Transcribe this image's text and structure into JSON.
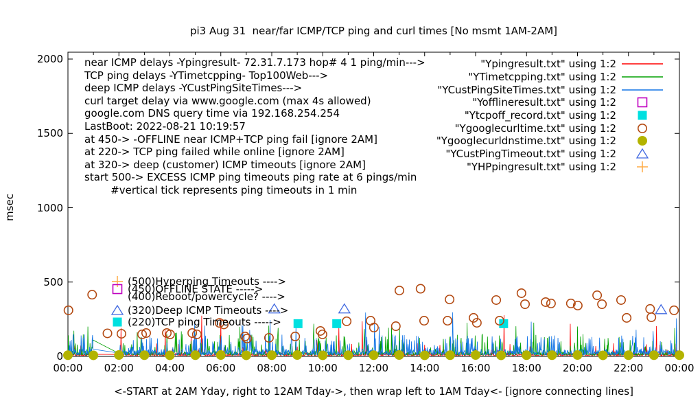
{
  "title": "pi3 Aug 31  near/far ICMP/TCP ping and curl times [No msmt 1AM-2AM]",
  "caption": "<-START at 2AM Yday, right to 12AM Tday->, then wrap left to 1AM Tday<- [ignore connecting lines]",
  "axes": {
    "ylabel": "msec",
    "y_ticks": [
      {
        "msec": 0,
        "label": "0"
      },
      {
        "msec": 500,
        "label": "500"
      },
      {
        "msec": 1000,
        "label": "1000"
      },
      {
        "msec": 1500,
        "label": "1500"
      },
      {
        "msec": 2000,
        "label": "2000"
      }
    ],
    "x_ticks": [
      {
        "h": 0,
        "label": "00:00"
      },
      {
        "h": 2,
        "label": "02:00"
      },
      {
        "h": 4,
        "label": "04:00"
      },
      {
        "h": 6,
        "label": "06:00"
      },
      {
        "h": 8,
        "label": "08:00"
      },
      {
        "h": 10,
        "label": "10:00"
      },
      {
        "h": 12,
        "label": "12:00"
      },
      {
        "h": 14,
        "label": "14:00"
      },
      {
        "h": 16,
        "label": "16:00"
      },
      {
        "h": 18,
        "label": "18:00"
      },
      {
        "h": 20,
        "label": "20:00"
      },
      {
        "h": 22,
        "label": "22:00"
      },
      {
        "h": 24,
        "label": "00:00"
      }
    ]
  },
  "colors": {
    "near": "#ff0000",
    "tcp": "#00a000",
    "deep": "#1274e6",
    "offline": "#bf00bf",
    "tcpoff": "#00e0e0",
    "curl": "#b34a12",
    "dns": "#b3b300",
    "custping": "#4169e1",
    "hp": "#ffaa44",
    "axis": "#000000"
  },
  "info": {
    "lines": [
      "near ICMP delays -Ypingresult- 72.31.7.173 hop# 4 1 ping/min--->",
      "TCP ping delays -YTimetcpping- Top100Web--->",
      "deep ICMP delays -YCustPingSiteTimes--->",
      "curl target delay via www.google.com (max 4s allowed)",
      "google.com DNS query time via 192.168.254.254",
      "LastBoot: 2022-08-21 10:19:57",
      "at 450-> -OFFLINE near ICMP+TCP ping fail [ignore 2AM]",
      "at 220-> TCP ping failed while online [ignore 2AM]",
      "at 320-> deep (customer) ICMP timeouts [ignore 2AM]",
      "start 500-> EXCESS ICMP ping timeouts ping rate at 6 pings/min",
      "        #vertical tick represents ping timeouts in 1 min"
    ]
  },
  "legend": {
    "items": [
      {
        "label": "\"Ypingresult.txt\" using 1:2",
        "sample": "line",
        "color": "near"
      },
      {
        "label": "\"YTimetcpping.txt\" using 1:2",
        "sample": "line",
        "color": "tcp"
      },
      {
        "label": "\"YCustPingSiteTimes.txt\" using 1:2",
        "sample": "line",
        "color": "deep"
      },
      {
        "label": "\"Yofflineresult.txt\" using 1:2",
        "sample": "open-square",
        "color": "offline"
      },
      {
        "label": "\"Ytcpoff_record.txt\" using 1:2",
        "sample": "filled-square",
        "color": "tcpoff"
      },
      {
        "label": "\"Ygooglecurltime.txt\" using 1:2",
        "sample": "open-circle",
        "color": "curl"
      },
      {
        "label": "\"Ygooglecurldnstime.txt\" using 1:2",
        "sample": "filled-circle",
        "color": "dns"
      },
      {
        "label": "\"YCustPingTimeout.txt\" using 1:2",
        "sample": "open-triangle",
        "color": "custping"
      },
      {
        "label": "\"YHPpingresult.txt\" using 1:2",
        "sample": "plus",
        "color": "hp"
      }
    ]
  },
  "chart_data": {
    "type": "line",
    "title": "pi3 Aug 31  near/far ICMP/TCP ping and curl times [No msmt 1AM-2AM]",
    "xlabel": "<-START at 2AM Yday, right to 12AM Tday->, then wrap left to 1AM Tday<- [ignore connecting lines]",
    "ylabel": "msec",
    "ylim": [
      0,
      2000
    ],
    "x_range_hours": [
      0,
      24
    ],
    "gap_no_measurement_hours": [
      1,
      2
    ],
    "grid": false,
    "legend_position": "top-right",
    "noise": {
      "seed": 11,
      "minutes": 1440,
      "series": [
        {
          "name": "Ypingresult (near ICMP, 1 ping/min)",
          "color": "near",
          "base": 5,
          "jitter": 10,
          "spike_p": 0.05,
          "spike_min": 25,
          "spike_max": 90,
          "big_p": 0.008,
          "big_min": 100,
          "big_max": 310,
          "force": []
        },
        {
          "name": "YTimetcpping (TCP ping Top100Web)",
          "color": "tcp",
          "base": 8,
          "jitter": 15,
          "spike_p": 0.1,
          "spike_min": 40,
          "spike_max": 150,
          "big_p": 0.015,
          "big_min": 150,
          "big_max": 245,
          "force": [
            [
              59,
              110
            ]
          ]
        },
        {
          "name": "YCustPingSiteTimes (deep ICMP)",
          "color": "deep",
          "base": 10,
          "jitter": 20,
          "spike_p": 0.16,
          "spike_min": 40,
          "spike_max": 150,
          "big_p": 0.012,
          "big_min": 150,
          "big_max": 300,
          "force": []
        }
      ]
    },
    "scatter": {
      "google_curl_time_circles": [
        [
          0.02,
          310
        ],
        [
          0.95,
          415
        ],
        [
          1.55,
          155
        ],
        [
          2.1,
          152
        ],
        [
          2.91,
          148
        ],
        [
          3.07,
          157
        ],
        [
          3.88,
          157
        ],
        [
          4.01,
          148
        ],
        [
          4.88,
          157
        ],
        [
          5.06,
          148
        ],
        [
          5.95,
          225
        ],
        [
          6.12,
          215
        ],
        [
          6.95,
          134
        ],
        [
          7.03,
          120
        ],
        [
          7.89,
          125
        ],
        [
          8.92,
          134
        ],
        [
          9.91,
          171
        ],
        [
          9.99,
          148
        ],
        [
          10.94,
          236
        ],
        [
          11.88,
          240
        ],
        [
          12.01,
          194
        ],
        [
          12.87,
          203
        ],
        [
          13.01,
          443
        ],
        [
          13.84,
          455
        ],
        [
          13.98,
          240
        ],
        [
          14.9,
          240
        ],
        [
          14.98,
          383
        ],
        [
          15.92,
          259
        ],
        [
          16.05,
          226
        ],
        [
          16.81,
          379
        ],
        [
          16.94,
          240
        ],
        [
          17.8,
          425
        ],
        [
          17.94,
          351
        ],
        [
          18.75,
          365
        ],
        [
          18.96,
          356
        ],
        [
          19.74,
          356
        ],
        [
          20.01,
          342
        ],
        [
          20.77,
          411
        ],
        [
          20.96,
          351
        ],
        [
          21.71,
          379
        ],
        [
          21.93,
          259
        ],
        [
          22.85,
          319
        ],
        [
          22.9,
          263
        ],
        [
          23.79,
          310
        ]
      ],
      "google_curl_dns_time_dots": [
        [
          0,
          8
        ],
        [
          1,
          7
        ],
        [
          2,
          9
        ],
        [
          3,
          8
        ],
        [
          4,
          7
        ],
        [
          5,
          8
        ],
        [
          6,
          9
        ],
        [
          7,
          7
        ],
        [
          8,
          8
        ],
        [
          9,
          9
        ],
        [
          10,
          7
        ],
        [
          11,
          8
        ],
        [
          12,
          8
        ],
        [
          13,
          9
        ],
        [
          14,
          7
        ],
        [
          15,
          8
        ],
        [
          16,
          9
        ],
        [
          17,
          7
        ],
        [
          18,
          8
        ],
        [
          19,
          8
        ],
        [
          20,
          9
        ],
        [
          21,
          7
        ],
        [
          22,
          8
        ],
        [
          23,
          8
        ],
        [
          24,
          8
        ]
      ],
      "tcpoff_record_squares": [
        [
          9.03,
          220
        ],
        [
          10.55,
          220
        ],
        [
          17.1,
          220
        ]
      ],
      "cust_ping_timeout_triangles": [
        [
          8.1,
          320
        ],
        [
          10.85,
          320
        ],
        [
          23.28,
          315
        ]
      ],
      "hp_ping_plus": []
    },
    "annotations": [
      {
        "marker": "plus",
        "color": "hp",
        "msec": 505,
        "label": "(500)Hyperping Timeouts ---->"
      },
      {
        "marker": "open-square",
        "color": "offline",
        "msec": 452,
        "label": "(450)OFFLINE STATE ----->"
      },
      {
        "marker": null,
        "color": null,
        "msec": 402,
        "label": "(400)Reboot/powercycle? ---->"
      },
      {
        "marker": "open-triangle",
        "color": "custping",
        "msec": 310,
        "label": "(320)Deep ICMP Timeouts ---->"
      },
      {
        "marker": "filled-square",
        "color": "tcpoff",
        "msec": 233,
        "label": "(220)TCP ping Timeouts ----->"
      }
    ]
  }
}
